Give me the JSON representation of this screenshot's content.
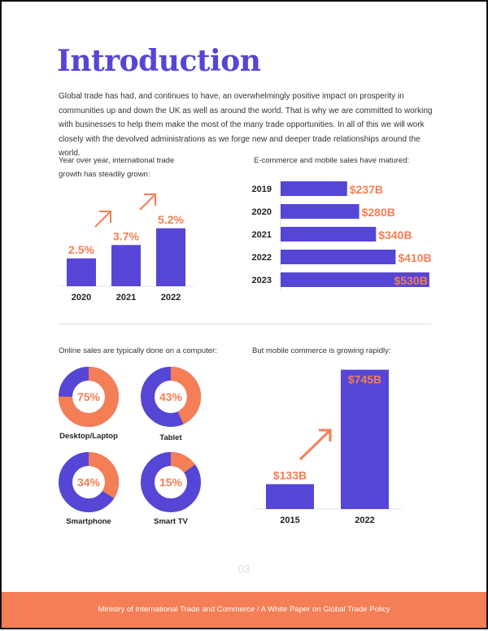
{
  "title": "Introduction",
  "intro": "Global trade has had, and continues to have, an overwhelmingly positive impact on prosperity in communities up and down the UK as well as around the world. That is why we are committed to working with businesses to help them make the most of the many trade opportunities. In all of this we will work closely with the devolved administrations as we forge new and deeper trade relationships around the world.",
  "colors": {
    "accent": "#5546d6",
    "orange": "#f47e55",
    "footer": "#f47e55"
  },
  "chart_data": [
    {
      "type": "bar",
      "caption": "Year over year, international trade growth has steadily grown:",
      "categories": [
        "2020",
        "2021",
        "2022"
      ],
      "values": [
        2.5,
        3.7,
        5.2
      ],
      "labels": [
        "2.5%",
        "3.7%",
        "5.2%"
      ],
      "annotations": [
        "up-arrow",
        "up-arrow"
      ]
    },
    {
      "type": "bar",
      "orientation": "horizontal",
      "caption": "E-commerce and mobile sales have matured:",
      "categories": [
        "2019",
        "2020",
        "2021",
        "2022",
        "2023"
      ],
      "values": [
        237,
        280,
        340,
        410,
        530
      ],
      "labels": [
        "$237B",
        "$280B",
        "$340B",
        "$410B",
        "$530B"
      ]
    },
    {
      "type": "pie",
      "style": "donut",
      "caption": "Online sales are typically done on a computer:",
      "categories": [
        "Desktop/Laptop",
        "Tablet",
        "Smartphone",
        "Smart TV"
      ],
      "values": [
        75,
        43,
        34,
        15
      ],
      "labels": [
        "75%",
        "43%",
        "34%",
        "15%"
      ]
    },
    {
      "type": "bar",
      "caption": "But mobile commerce is growing rapidly:",
      "categories": [
        "2015",
        "2022"
      ],
      "values": [
        133,
        745
      ],
      "labels": [
        "$133B",
        "$745B"
      ],
      "annotations": [
        "up-arrow"
      ]
    }
  ],
  "page_number": "03",
  "footer": "Ministry of International Trade and Commerce  /  A White Paper on Global Trade Policy"
}
